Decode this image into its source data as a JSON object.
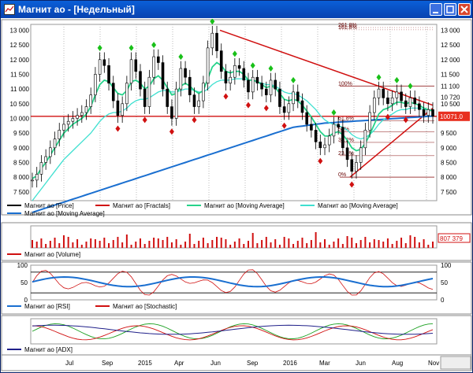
{
  "window": {
    "title": "Магнит ао - [Недельный]",
    "icon": "chart-window-icon",
    "buttons": [
      "minimize-icon",
      "maximize-icon",
      "close-icon"
    ]
  },
  "colors": {
    "price": "#000000",
    "fractals": "#d01010",
    "ma_fast": "#26d38a",
    "ma_mid": "#3fe0d0",
    "ma_slow": "#1a6fd0",
    "volume": "#d01010",
    "rsi": "#1a6fd0",
    "stochastic": "#d01010",
    "adx_plus": "#1aa020",
    "adx_minus": "#d01010",
    "adx": "#20208a",
    "trend": "#d01010",
    "fibo": "#a04040",
    "current_price_bg": "#e83020"
  },
  "price_panel": {
    "y_ticks": [
      "13 000",
      "12 500",
      "12 000",
      "11 500",
      "11 000",
      "10 500",
      "10 000",
      "9 500",
      "9 000",
      "8 500",
      "8 000",
      "7 500"
    ],
    "right_ticks": [
      "13 000",
      "12 500",
      "12 000",
      "11 500",
      "11 100",
      "10 720",
      "10 500",
      "10 000",
      "9 500",
      "9 000",
      "8 500",
      "8 000",
      "7 500"
    ],
    "current_price": "10071.0",
    "fibo_levels": [
      "261.8%",
      "161.8%",
      "100%",
      "61.8%",
      "50%",
      "38.2%",
      "23.6%",
      "0%"
    ],
    "legend": [
      {
        "label": "Магнит ао [Price]",
        "color": "#000000"
      },
      {
        "label": "Магнит ао [Fractals]",
        "color": "#d01010"
      },
      {
        "label": "Магнит ао [Moving Average]",
        "color": "#26d38a"
      },
      {
        "label": "Магнит ао [Moving Average]",
        "color": "#3fe0d0"
      },
      {
        "label": "Магнит ао [Moving Average]",
        "color": "#1a6fd0"
      }
    ]
  },
  "volume_panel": {
    "value_badge": "807 379",
    "legend": [
      {
        "label": "Магнит ао [Volume]",
        "color": "#d01010"
      }
    ]
  },
  "osc_panel": {
    "y_ticks": [
      "100",
      "50",
      "0"
    ],
    "right_ticks": [
      "100",
      "50",
      "0"
    ],
    "legend": [
      {
        "label": "Магнит ао [RSI]",
        "color": "#1a6fd0"
      },
      {
        "label": "Магнит ао [Stochastic]",
        "color": "#d01010"
      }
    ]
  },
  "adx_panel": {
    "legend": [
      {
        "label": "Магнит ао [ADX]",
        "color": "#20208a"
      }
    ]
  },
  "x_axis": {
    "labels": [
      "Jul",
      "Sep",
      "2015",
      "Apr",
      "Jun",
      "Sep",
      "2016",
      "Mar",
      "Jun",
      "Aug",
      "Nov"
    ]
  },
  "chart_data": {
    "type": "line",
    "y_range": [
      7200,
      13200
    ],
    "x_labels": [
      "Jul",
      "Sep",
      "2015",
      "Apr",
      "Jun",
      "Sep",
      "2016",
      "Mar",
      "Jun",
      "Aug",
      "Nov"
    ],
    "price_series": [
      7900,
      8100,
      8500,
      8700,
      9000,
      9300,
      9600,
      9800,
      9900,
      10000,
      10100,
      10200,
      10400,
      10800,
      11500,
      12000,
      11800,
      11200,
      10600,
      10100,
      10500,
      11200,
      12000,
      11600,
      11000,
      10400,
      11400,
      12100,
      11900,
      11000,
      10400,
      10000,
      11000,
      11700,
      11400,
      10800,
      10400,
      10600,
      11200,
      12400,
      12900,
      12300,
      11600,
      11200,
      11400,
      11800,
      11700,
      11300,
      10900,
      11400,
      11200,
      11000,
      10800,
      11300,
      11000,
      10400,
      10200,
      10500,
      10900,
      10600,
      10200,
      9800,
      9600,
      9200,
      9000,
      9100,
      9400,
      9800,
      9700,
      9000,
      8600,
      8200,
      8500,
      9000,
      9600,
      10200,
      10700,
      11000,
      10700,
      10500,
      10700,
      10900,
      10600,
      10400,
      10700,
      10500,
      10300,
      10100,
      10300,
      10071
    ],
    "ma_fast": [
      7950,
      8050,
      8300,
      8500,
      8750,
      9000,
      9250,
      9500,
      9650,
      9800,
      9900,
      10000,
      10150,
      10400,
      10800,
      11150,
      11300,
      11250,
      11050,
      10850,
      10800,
      10950,
      11250,
      11300,
      11200,
      11000,
      11100,
      11350,
      11450,
      11300,
      11050,
      10800,
      10850,
      11100,
      11200,
      11100,
      10950,
      10850,
      10950,
      11350,
      11750,
      11900,
      11800,
      11600,
      11550,
      11600,
      11600,
      11500,
      11300,
      11300,
      11250,
      11150,
      11050,
      11100,
      11050,
      10850,
      10650,
      10600,
      10650,
      10600,
      10450,
      10250,
      10050,
      9800,
      9550,
      9400,
      9400,
      9500,
      9550,
      9450,
      9250,
      9000,
      8900,
      8950,
      9150,
      9450,
      9800,
      10150,
      10300,
      10350,
      10450,
      10550,
      10550,
      10500,
      10550,
      10500,
      10450,
      10350,
      10300,
      10250
    ],
    "ma_mid": [
      7200,
      7400,
      7600,
      7800,
      8000,
      8200,
      8400,
      8600,
      8750,
      8900,
      9050,
      9200,
      9350,
      9500,
      9700,
      9900,
      10050,
      10150,
      10200,
      10200,
      10250,
      10350,
      10500,
      10600,
      10650,
      10650,
      10700,
      10800,
      10900,
      10950,
      10950,
      10900,
      10900,
      10950,
      11000,
      11000,
      10950,
      10900,
      10900,
      11000,
      11150,
      11250,
      11300,
      11300,
      11300,
      11350,
      11350,
      11350,
      11300,
      11300,
      11250,
      11200,
      11150,
      11150,
      11100,
      11000,
      10900,
      10850,
      10850,
      10800,
      10700,
      10600,
      10450,
      10300,
      10100,
      9950,
      9850,
      9800,
      9750,
      9700,
      9600,
      9450,
      9350,
      9300,
      9350,
      9450,
      9600,
      9800,
      9950,
      10050,
      10150,
      10250,
      10300,
      10300,
      10350,
      10350,
      10350,
      10300,
      10300,
      10280
    ],
    "ma_slow": [
      6800,
      6850,
      6900,
      6950,
      7000,
      7050,
      7100,
      7150,
      7200,
      7250,
      7300,
      7350,
      7400,
      7450,
      7500,
      7550,
      7600,
      7650,
      7700,
      7750,
      7800,
      7850,
      7900,
      7950,
      8000,
      8050,
      8100,
      8150,
      8200,
      8250,
      8300,
      8350,
      8400,
      8450,
      8500,
      8550,
      8600,
      8650,
      8700,
      8750,
      8800,
      8850,
      8900,
      8950,
      9000,
      9050,
      9100,
      9150,
      9200,
      9250,
      9300,
      9350,
      9400,
      9450,
      9500,
      9550,
      9600,
      9650,
      9700,
      9720,
      9740,
      9760,
      9780,
      9800,
      9820,
      9840,
      9850,
      9860,
      9870,
      9880,
      9890,
      9900,
      9910,
      9920,
      9930,
      9940,
      9950,
      9960,
      9970,
      9980,
      9990,
      10000,
      10010,
      10020,
      10030,
      10040,
      10050,
      10060,
      10070,
      10080
    ],
    "current_price": 10071.0,
    "volume_last": 807379
  }
}
